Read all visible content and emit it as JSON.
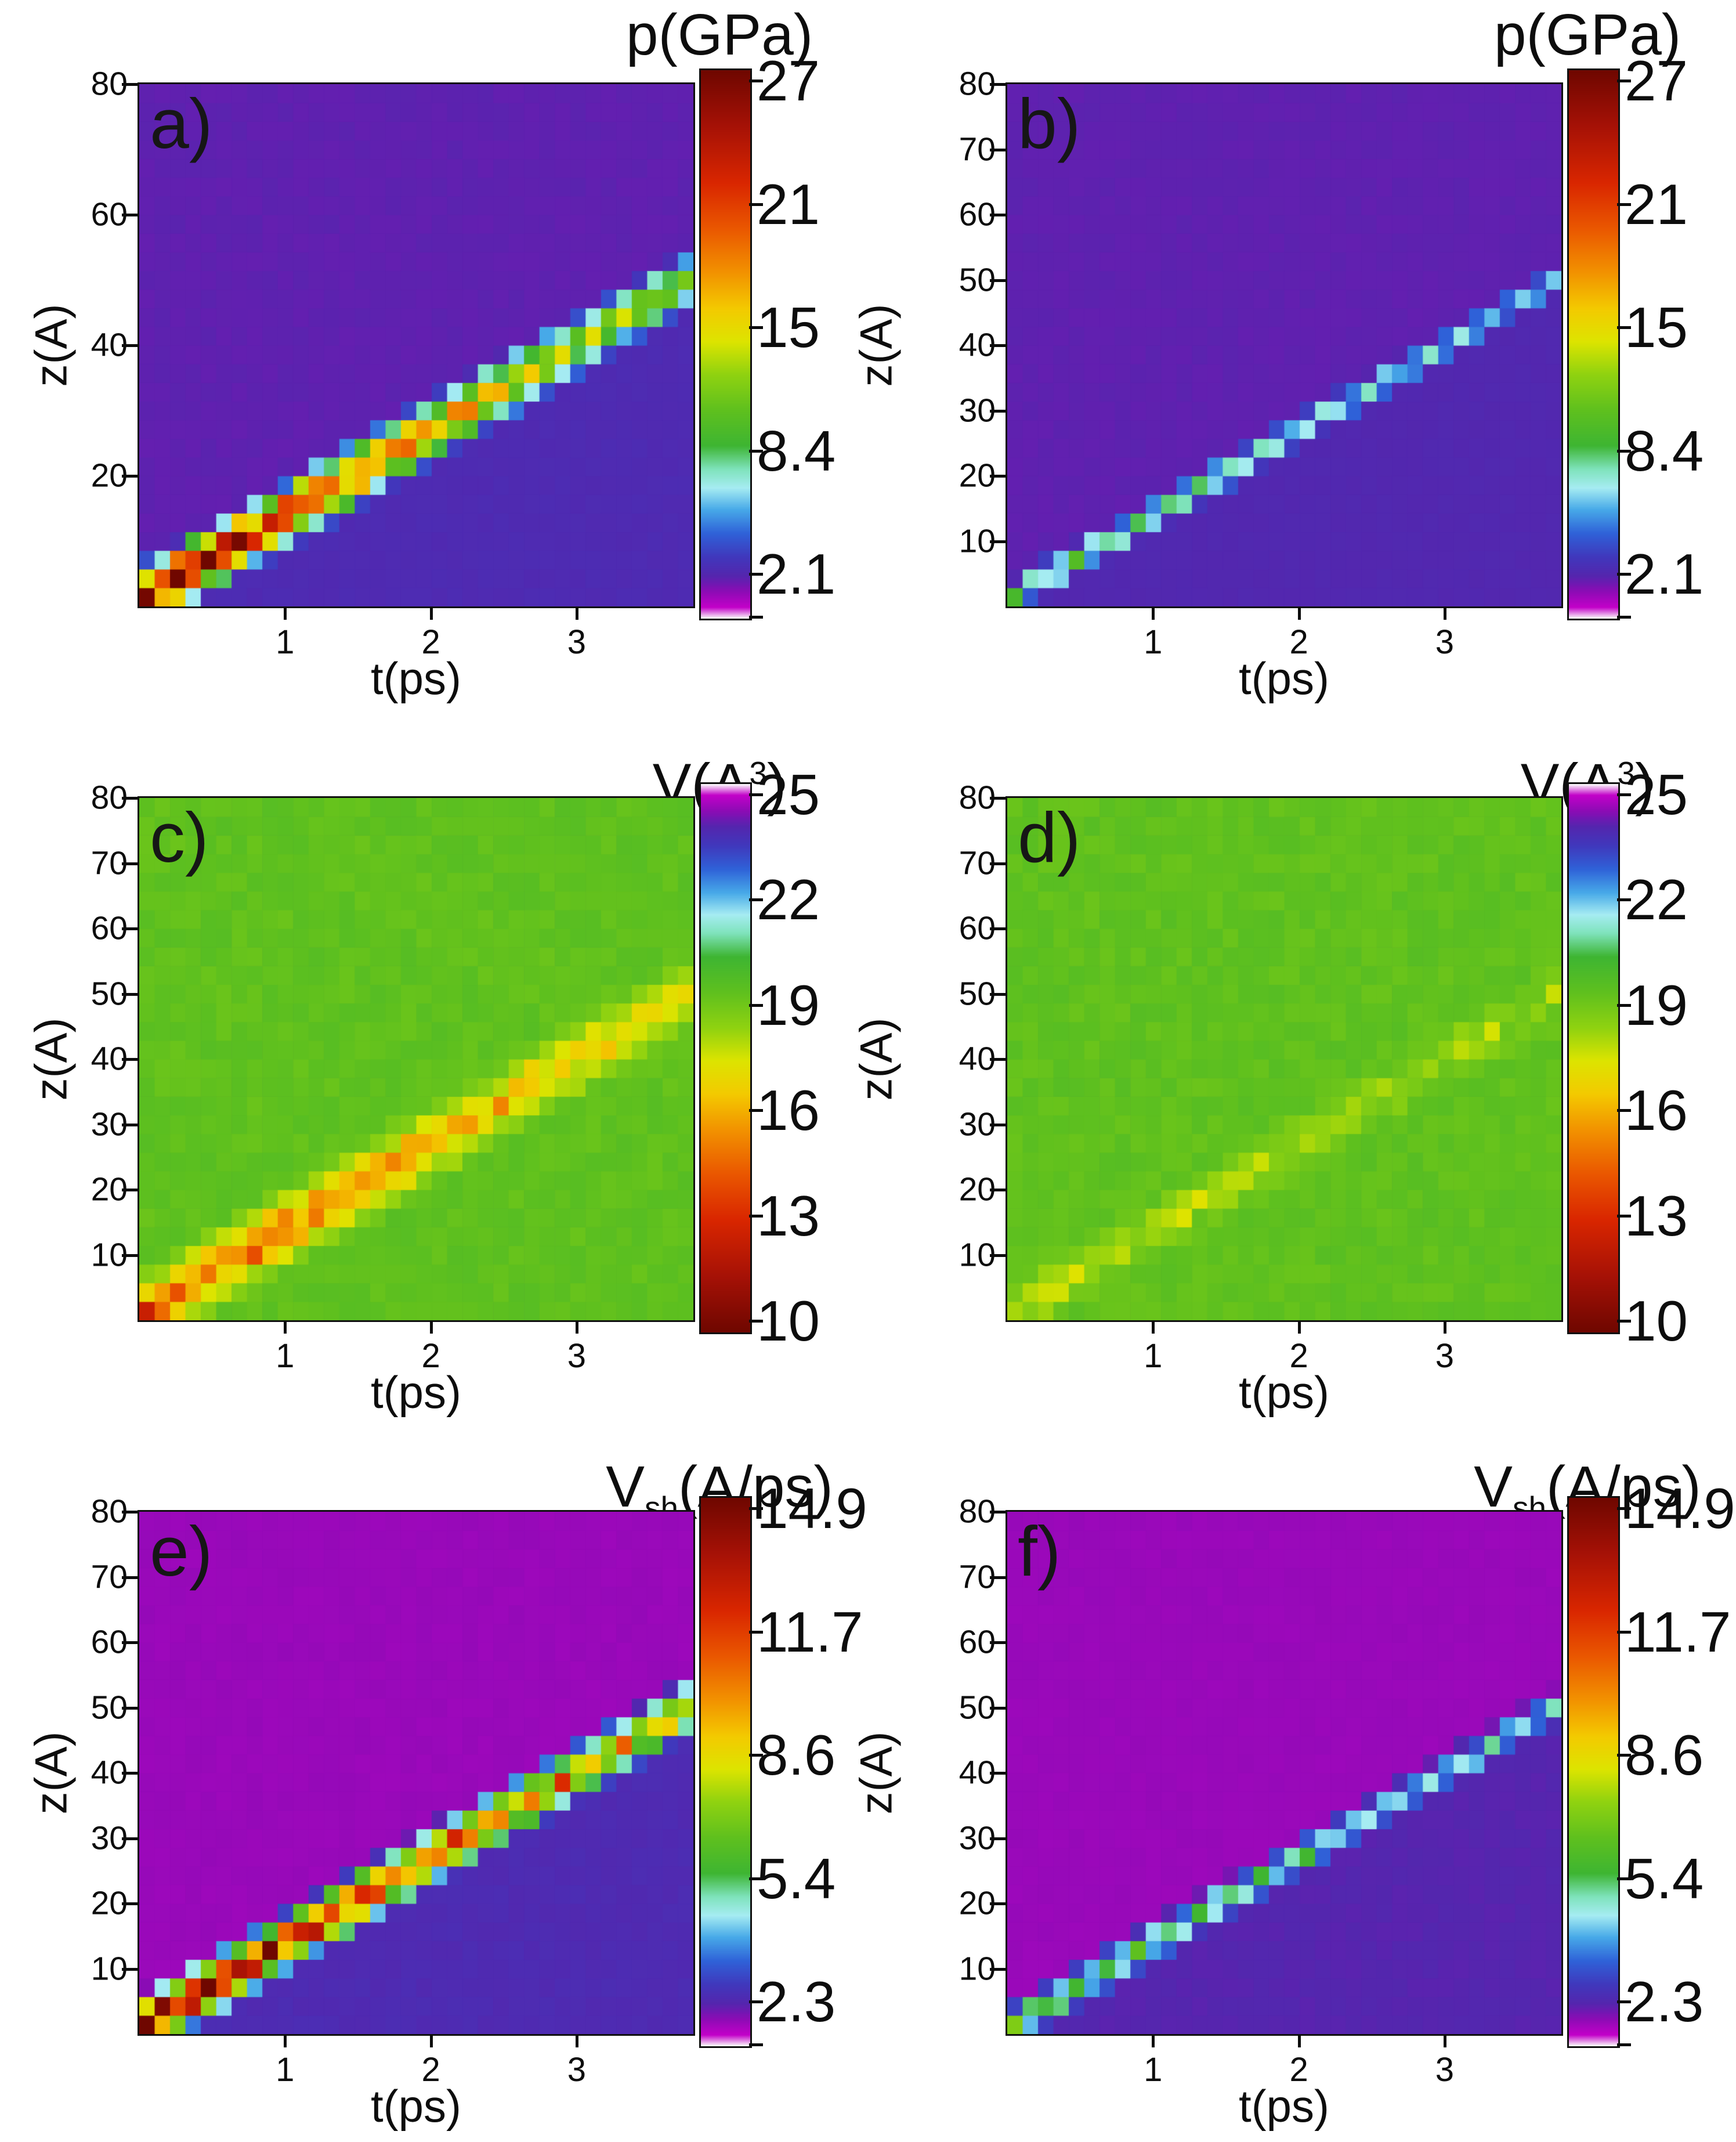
{
  "figure_note": "Six pcolor heatmaps of shock-wave propagation: pressure p(GPa), specific volume V(A3) and shock velocity Vsh(A/ps) versus depth z(A) and time t(ps); left column strong shock, right column weak shock",
  "colormap": {
    "stops": [
      {
        "f": 0.0,
        "c": "#fbfbfb"
      },
      {
        "f": 0.02,
        "c": "#c201c9"
      },
      {
        "f": 0.048,
        "c": "#8d0bb5"
      },
      {
        "f": 0.078,
        "c": "#5426ae"
      },
      {
        "f": 0.112,
        "c": "#4038bc"
      },
      {
        "f": 0.155,
        "c": "#2f62d8"
      },
      {
        "f": 0.198,
        "c": "#47a9e8"
      },
      {
        "f": 0.238,
        "c": "#a6ecf2"
      },
      {
        "f": 0.272,
        "c": "#7fe3bc"
      },
      {
        "f": 0.315,
        "c": "#3eb532"
      },
      {
        "f": 0.38,
        "c": "#5fc01e"
      },
      {
        "f": 0.445,
        "c": "#90d210"
      },
      {
        "f": 0.505,
        "c": "#dde400"
      },
      {
        "f": 0.565,
        "c": "#f3ca00"
      },
      {
        "f": 0.63,
        "c": "#f29300"
      },
      {
        "f": 0.71,
        "c": "#ea5800"
      },
      {
        "f": 0.795,
        "c": "#d92600"
      },
      {
        "f": 0.9,
        "c": "#a51106"
      },
      {
        "f": 1.0,
        "c": "#6f0700"
      }
    ]
  },
  "chart_data": [
    {
      "type": "heatmap",
      "letter": "a)",
      "quantity": "pressure",
      "title_parts": [
        {
          "t": "p(GPa)"
        }
      ],
      "xlabel": "t(ps)",
      "ylabel": "z(A)",
      "x_range": [
        0,
        3.8
      ],
      "y_range": [
        0,
        80
      ],
      "x_ticks": [
        "1",
        "2",
        "3"
      ],
      "y_ticks": [
        "80",
        "60",
        "40",
        "20"
      ],
      "colorbar": {
        "labels": [
          "27",
          "21",
          "15",
          "8.4",
          "2.1"
        ],
        "vmin": 0,
        "vmax": 27,
        "flip": false
      },
      "band": {
        "z0": 1.0,
        "speed": 13.0,
        "halfwidth": 7.0,
        "amp_start": 27,
        "amp_end": 10,
        "bg": 1.95,
        "below": 2.35,
        "noise_band": 0.2,
        "noise_bg": 0.035,
        "dip": false,
        "seed": 11
      },
      "note": "strong shock front, speed ~13 A/ps, pressure decays 27->~10 GPa"
    },
    {
      "type": "heatmap",
      "letter": "b)",
      "quantity": "pressure",
      "title_parts": [
        {
          "t": "p(GPa)"
        }
      ],
      "xlabel": "t(ps)",
      "ylabel": "z(A)",
      "x_range": [
        0,
        3.8
      ],
      "y_range": [
        0,
        80
      ],
      "x_ticks": [
        "1",
        "2",
        "3"
      ],
      "y_ticks": [
        "80",
        "70",
        "60",
        "50",
        "40",
        "30",
        "20",
        "10"
      ],
      "colorbar": {
        "labels": [
          "27",
          "21",
          "15",
          "8.4",
          "2.1"
        ],
        "vmin": 0,
        "vmax": 27,
        "flip": false
      },
      "band": {
        "z0": 1.0,
        "speed": 13.0,
        "halfwidth": 4.5,
        "amp_start": 8.4,
        "amp_end": 6.0,
        "bg": 1.95,
        "below": 2.2,
        "noise_band": 0.18,
        "noise_bg": 0.03,
        "dip": false,
        "seed": 23
      },
      "note": "weak shock front, pressure ~8 GPa fading to ~6 GPa"
    },
    {
      "type": "heatmap",
      "letter": "c)",
      "quantity": "specific-volume",
      "title_parts": [
        {
          "t": "V(A"
        },
        {
          "t": "3",
          "sup": true
        },
        {
          "t": ")"
        }
      ],
      "xlabel": "t(ps)",
      "ylabel": "z(A)",
      "x_range": [
        0,
        3.8
      ],
      "y_range": [
        0,
        80
      ],
      "x_ticks": [
        "1",
        "2",
        "3"
      ],
      "y_ticks": [
        "80",
        "70",
        "60",
        "50",
        "40",
        "30",
        "20",
        "10"
      ],
      "colorbar": {
        "labels": [
          "25",
          "22",
          "19",
          "16",
          "13",
          "10"
        ],
        "vmin": 10,
        "vmax": 25,
        "flip": true
      },
      "band": {
        "z0": 1.0,
        "speed": 13.0,
        "halfwidth": 7.5,
        "amp_start": 5.0,
        "amp_end": 1.9,
        "bg": 19.3,
        "below": 19.3,
        "noise_band": 0.3,
        "noise_bg": 0.012,
        "dip": true,
        "seed": 37
      },
      "note": "volume compression band: V drops from ~19.3 to ~14.3 A3 at early times"
    },
    {
      "type": "heatmap",
      "letter": "d)",
      "quantity": "specific-volume",
      "title_parts": [
        {
          "t": "V(A"
        },
        {
          "t": "3",
          "sup": true
        },
        {
          "t": ")"
        }
      ],
      "xlabel": "t(ps)",
      "ylabel": "z(A)",
      "x_range": [
        0,
        3.8
      ],
      "y_range": [
        0,
        80
      ],
      "x_ticks": [
        "1",
        "2",
        "3"
      ],
      "y_ticks": [
        "80",
        "70",
        "60",
        "50",
        "40",
        "30",
        "20",
        "10"
      ],
      "colorbar": {
        "labels": [
          "25",
          "22",
          "19",
          "16",
          "13",
          "10"
        ],
        "vmin": 10,
        "vmax": 25,
        "flip": true
      },
      "band": {
        "z0": 1.0,
        "speed": 13.0,
        "halfwidth": 6.0,
        "amp_start": 1.5,
        "amp_end": 1.0,
        "bg": 19.3,
        "below": 19.3,
        "noise_band": 0.5,
        "noise_bg": 0.012,
        "dip": true,
        "seed": 51
      },
      "note": "weak compression: faint checkered band, V dips ~1 A3 below ambient"
    },
    {
      "type": "heatmap",
      "letter": "e)",
      "quantity": "shock-velocity",
      "title_parts": [
        {
          "t": "V"
        },
        {
          "t": "sh",
          "sub": true
        },
        {
          "t": "(A/ps)"
        }
      ],
      "xlabel": "t(ps)",
      "ylabel": "z(A)",
      "x_range": [
        0,
        3.8
      ],
      "y_range": [
        0,
        80
      ],
      "x_ticks": [
        "1",
        "2",
        "3"
      ],
      "y_ticks": [
        "80",
        "70",
        "60",
        "50",
        "40",
        "30",
        "20",
        "10"
      ],
      "colorbar": {
        "labels": [
          "14.9",
          "11.7",
          "8.6",
          "5.4",
          "2.3"
        ],
        "vmin": 0,
        "vmax": 14.9,
        "flip": false
      },
      "band": {
        "z0": 1.0,
        "speed": 13.0,
        "halfwidth": 6.2,
        "amp_start": 14.9,
        "amp_end": 7.6,
        "bg": 0.62,
        "below": 1.3,
        "noise_band": 0.2,
        "noise_bg": 0.05,
        "dip": false,
        "seed": 67
      },
      "note": "particle/shock velocity band decays 14.9->~7.6 A/ps"
    },
    {
      "type": "heatmap",
      "letter": "f)",
      "quantity": "shock-velocity",
      "title_parts": [
        {
          "t": "V"
        },
        {
          "t": "sh",
          "sub": true
        },
        {
          "t": "(A/ps)"
        }
      ],
      "xlabel": "t(ps)",
      "ylabel": "z(A)",
      "x_range": [
        0,
        3.8
      ],
      "y_range": [
        0,
        80
      ],
      "x_ticks": [
        "1",
        "2",
        "3"
      ],
      "y_ticks": [
        "80",
        "70",
        "60",
        "50",
        "40",
        "30",
        "20",
        "10"
      ],
      "colorbar": {
        "labels": [
          "14.9",
          "11.7",
          "8.6",
          "5.4",
          "2.3"
        ],
        "vmin": 0,
        "vmax": 14.9,
        "flip": false
      },
      "band": {
        "z0": 1.0,
        "speed": 13.0,
        "halfwidth": 4.8,
        "amp_start": 5.4,
        "amp_end": 3.3,
        "bg": 0.62,
        "below": 1.15,
        "noise_band": 0.18,
        "noise_bg": 0.04,
        "dip": false,
        "seed": 83
      },
      "note": "weak shock: green/cyan velocity band ~5 A/ps fading to ~3 A/ps"
    }
  ]
}
